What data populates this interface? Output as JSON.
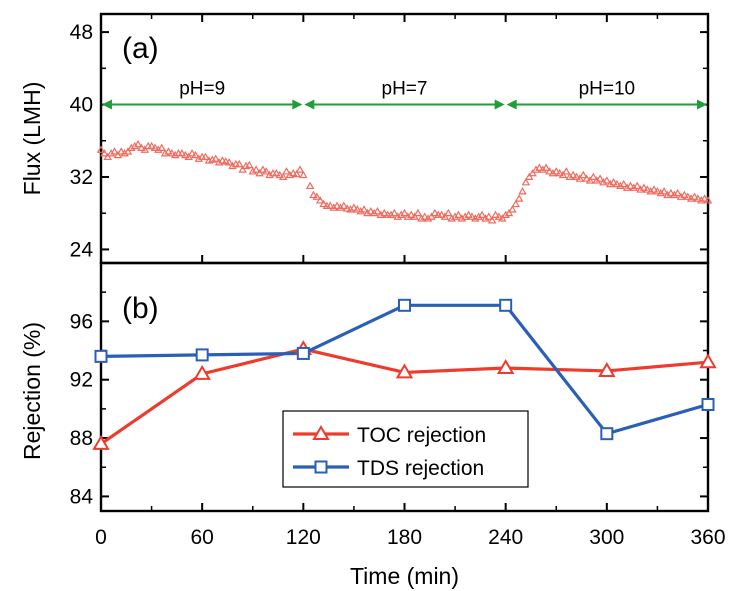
{
  "chart_data": [
    {
      "panel": "(a)",
      "type": "scatter",
      "ylabel": "Flux (LMH)",
      "xlabel": "",
      "xlim": [
        0,
        360
      ],
      "ylim": [
        22.5,
        50
      ],
      "yticks": [
        24,
        32,
        40,
        48
      ],
      "grid": false,
      "annotations": [
        {
          "text": "pH=9",
          "x_range": [
            0,
            120
          ]
        },
        {
          "text": "pH=7",
          "x_range": [
            120,
            240
          ]
        },
        {
          "text": "pH=10",
          "x_range": [
            240,
            360
          ]
        }
      ],
      "series": [
        {
          "marker": "triangle",
          "color": "#f06a5e",
          "points": [
            [
              0,
              35.0
            ],
            [
              2,
              34.6
            ],
            [
              4,
              34.2
            ],
            [
              6,
              34.6
            ],
            [
              8,
              34.8
            ],
            [
              10,
              34.4
            ],
            [
              12,
              34.8
            ],
            [
              14,
              34.6
            ],
            [
              16,
              34.8
            ],
            [
              18,
              35.2
            ],
            [
              20,
              35.4
            ],
            [
              22,
              35.6
            ],
            [
              24,
              35.2
            ],
            [
              26,
              35.0
            ],
            [
              28,
              35.4
            ],
            [
              30,
              35.4
            ],
            [
              32,
              35.2
            ],
            [
              34,
              35.0
            ],
            [
              36,
              35.2
            ],
            [
              38,
              34.6
            ],
            [
              40,
              34.8
            ],
            [
              42,
              34.6
            ],
            [
              44,
              34.4
            ],
            [
              46,
              34.6
            ],
            [
              48,
              34.6
            ],
            [
              50,
              34.4
            ],
            [
              52,
              34.2
            ],
            [
              54,
              34.6
            ],
            [
              56,
              34.4
            ],
            [
              58,
              34.0
            ],
            [
              60,
              34.2
            ],
            [
              62,
              34.2
            ],
            [
              64,
              33.8
            ],
            [
              66,
              33.9
            ],
            [
              68,
              34.0
            ],
            [
              70,
              33.6
            ],
            [
              72,
              33.8
            ],
            [
              74,
              33.7
            ],
            [
              76,
              33.6
            ],
            [
              78,
              33.2
            ],
            [
              80,
              33.4
            ],
            [
              82,
              33.4
            ],
            [
              84,
              32.8
            ],
            [
              86,
              33.2
            ],
            [
              88,
              33.3
            ],
            [
              90,
              32.6
            ],
            [
              92,
              32.8
            ],
            [
              94,
              32.4
            ],
            [
              96,
              32.8
            ],
            [
              98,
              32.6
            ],
            [
              100,
              32.2
            ],
            [
              102,
              32.4
            ],
            [
              104,
              32.4
            ],
            [
              106,
              32.2
            ],
            [
              108,
              32.0
            ],
            [
              110,
              32.6
            ],
            [
              112,
              32.2
            ],
            [
              114,
              32.4
            ],
            [
              116,
              32.3
            ],
            [
              118,
              32.8
            ],
            [
              120,
              32.2
            ],
            [
              124,
              31.0
            ],
            [
              126,
              30.0
            ],
            [
              128,
              29.8
            ],
            [
              130,
              29.4
            ],
            [
              132,
              29.0
            ],
            [
              134,
              28.8
            ],
            [
              136,
              28.8
            ],
            [
              138,
              28.6
            ],
            [
              140,
              28.8
            ],
            [
              142,
              28.6
            ],
            [
              144,
              28.8
            ],
            [
              146,
              28.5
            ],
            [
              148,
              28.4
            ],
            [
              150,
              28.6
            ],
            [
              152,
              28.4
            ],
            [
              154,
              28.2
            ],
            [
              156,
              28.4
            ],
            [
              158,
              28.0
            ],
            [
              160,
              28.2
            ],
            [
              162,
              28.0
            ],
            [
              164,
              28.2
            ],
            [
              166,
              27.8
            ],
            [
              168,
              28.0
            ],
            [
              170,
              27.8
            ],
            [
              172,
              27.8
            ],
            [
              174,
              28.0
            ],
            [
              176,
              27.6
            ],
            [
              178,
              27.8
            ],
            [
              180,
              28.0
            ],
            [
              182,
              27.6
            ],
            [
              184,
              27.8
            ],
            [
              186,
              27.6
            ],
            [
              188,
              28.0
            ],
            [
              190,
              27.4
            ],
            [
              192,
              27.6
            ],
            [
              194,
              27.4
            ],
            [
              196,
              27.6
            ],
            [
              198,
              28.0
            ],
            [
              200,
              27.8
            ],
            [
              202,
              27.8
            ],
            [
              204,
              27.6
            ],
            [
              206,
              28.0
            ],
            [
              208,
              27.4
            ],
            [
              210,
              27.6
            ],
            [
              212,
              27.8
            ],
            [
              214,
              27.4
            ],
            [
              216,
              27.6
            ],
            [
              218,
              27.8
            ],
            [
              220,
              27.6
            ],
            [
              222,
              27.4
            ],
            [
              224,
              27.6
            ],
            [
              226,
              27.8
            ],
            [
              228,
              27.4
            ],
            [
              230,
              27.6
            ],
            [
              232,
              27.2
            ],
            [
              234,
              27.8
            ],
            [
              236,
              27.6
            ],
            [
              238,
              27.4
            ],
            [
              240,
              27.8
            ],
            [
              242,
              28.0
            ],
            [
              244,
              28.4
            ],
            [
              246,
              29.0
            ],
            [
              248,
              29.6
            ],
            [
              250,
              30.4
            ],
            [
              252,
              31.4
            ],
            [
              254,
              32.0
            ],
            [
              256,
              32.4
            ],
            [
              258,
              32.8
            ],
            [
              260,
              33.0
            ],
            [
              262,
              32.8
            ],
            [
              264,
              33.0
            ],
            [
              266,
              32.6
            ],
            [
              268,
              32.4
            ],
            [
              270,
              32.6
            ],
            [
              272,
              32.4
            ],
            [
              274,
              32.2
            ],
            [
              276,
              32.6
            ],
            [
              278,
              32.0
            ],
            [
              280,
              32.2
            ],
            [
              282,
              32.0
            ],
            [
              284,
              31.8
            ],
            [
              286,
              32.2
            ],
            [
              288,
              31.8
            ],
            [
              290,
              31.6
            ],
            [
              292,
              32.0
            ],
            [
              294,
              31.6
            ],
            [
              296,
              31.8
            ],
            [
              298,
              31.4
            ],
            [
              300,
              31.6
            ],
            [
              302,
              31.2
            ],
            [
              304,
              31.4
            ],
            [
              306,
              31.2
            ],
            [
              308,
              31.0
            ],
            [
              310,
              31.2
            ],
            [
              312,
              30.8
            ],
            [
              314,
              31.0
            ],
            [
              316,
              30.8
            ],
            [
              318,
              31.0
            ],
            [
              320,
              30.6
            ],
            [
              322,
              30.8
            ],
            [
              324,
              30.6
            ],
            [
              326,
              30.4
            ],
            [
              328,
              30.6
            ],
            [
              330,
              30.4
            ],
            [
              332,
              30.2
            ],
            [
              334,
              30.4
            ],
            [
              336,
              30.0
            ],
            [
              338,
              30.2
            ],
            [
              340,
              30.0
            ],
            [
              342,
              30.2
            ],
            [
              344,
              29.8
            ],
            [
              346,
              30.0
            ],
            [
              348,
              29.8
            ],
            [
              350,
              29.6
            ],
            [
              352,
              29.8
            ],
            [
              354,
              29.6
            ],
            [
              356,
              29.4
            ],
            [
              358,
              29.6
            ],
            [
              360,
              29.4
            ]
          ]
        }
      ]
    },
    {
      "panel": "(b)",
      "type": "line",
      "ylabel": "Rejection (%)",
      "xlabel": "Time (min)",
      "xlim": [
        0,
        360
      ],
      "ylim": [
        83,
        100
      ],
      "xticks": [
        0,
        60,
        120,
        180,
        240,
        300,
        360
      ],
      "yticks": [
        84,
        88,
        92,
        96
      ],
      "grid": false,
      "legend_position": "bottom-center",
      "series": [
        {
          "name": "TOC rejection",
          "marker": "triangle",
          "color": "#ee3b2e",
          "x": [
            0,
            60,
            120,
            180,
            240,
            300,
            360
          ],
          "values": [
            87.6,
            92.4,
            94.1,
            92.5,
            92.8,
            92.6,
            93.2
          ]
        },
        {
          "name": "TDS rejection",
          "marker": "square",
          "color": "#2a5fb8",
          "x": [
            0,
            60,
            120,
            180,
            240,
            300,
            360
          ],
          "values": [
            93.6,
            93.7,
            93.8,
            97.1,
            97.1,
            88.3,
            90.3
          ]
        }
      ]
    }
  ]
}
